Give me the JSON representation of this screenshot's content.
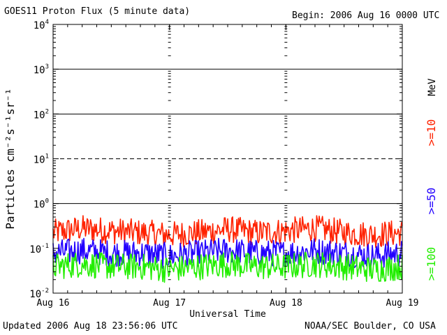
{
  "header": {
    "title": "GOES11 Proton Flux (5 minute data)",
    "begin": "Begin: 2006 Aug 16 0000 UTC"
  },
  "footer": {
    "updated": "Updated 2006 Aug 18 23:56:06 UTC",
    "source": "NOAA/SEC Boulder, CO USA"
  },
  "chart_data": {
    "type": "line",
    "title": "GOES11 Proton Flux (5 minute data)",
    "xlabel": "Universal Time",
    "ylabel": "Particles cm⁻²s⁻¹sr⁻¹",
    "y_scale": "log",
    "ylim": [
      0.01,
      10000
    ],
    "y_ticks": [
      {
        "base": "10",
        "exp": "-2"
      },
      {
        "base": "10",
        "exp": "-1"
      },
      {
        "base": "10",
        "exp": "0"
      },
      {
        "base": "10",
        "exp": "1"
      },
      {
        "base": "10",
        "exp": "2"
      },
      {
        "base": "10",
        "exp": "3"
      },
      {
        "base": "10",
        "exp": "4"
      }
    ],
    "x_ticks": [
      "Aug 16",
      "Aug 17",
      "Aug 18",
      "Aug 19"
    ],
    "xlim": [
      "2006-08-16",
      "2006-08-19"
    ],
    "right_axis_unit": "MeV",
    "series": [
      {
        "name": ">=10",
        "color": "#ff2200",
        "x": [
          "2006-08-16T00:00",
          "2006-08-16T06:00",
          "2006-08-16T12:00",
          "2006-08-16T18:00",
          "2006-08-17T00:00",
          "2006-08-17T06:00",
          "2006-08-17T12:00",
          "2006-08-17T18:00",
          "2006-08-18T00:00",
          "2006-08-18T06:00",
          "2006-08-18T12:00",
          "2006-08-18T18:00",
          "2006-08-19T00:00"
        ],
        "values": [
          0.2,
          0.25,
          0.22,
          0.2,
          0.18,
          0.2,
          0.24,
          0.2,
          0.22,
          0.25,
          0.2,
          0.18,
          0.2
        ]
      },
      {
        "name": ">=50",
        "color": "#2200ff",
        "x": [
          "2006-08-16T00:00",
          "2006-08-16T06:00",
          "2006-08-16T12:00",
          "2006-08-16T18:00",
          "2006-08-17T00:00",
          "2006-08-17T06:00",
          "2006-08-17T12:00",
          "2006-08-17T18:00",
          "2006-08-18T00:00",
          "2006-08-18T06:00",
          "2006-08-18T12:00",
          "2006-08-18T18:00",
          "2006-08-19T00:00"
        ],
        "values": [
          0.07,
          0.08,
          0.07,
          0.07,
          0.06,
          0.07,
          0.08,
          0.07,
          0.07,
          0.08,
          0.07,
          0.06,
          0.07
        ]
      },
      {
        "name": ">=100",
        "color": "#22ee00",
        "x": [
          "2006-08-16T00:00",
          "2006-08-16T06:00",
          "2006-08-16T12:00",
          "2006-08-16T18:00",
          "2006-08-17T00:00",
          "2006-08-17T06:00",
          "2006-08-17T12:00",
          "2006-08-17T18:00",
          "2006-08-18T00:00",
          "2006-08-18T06:00",
          "2006-08-18T12:00",
          "2006-08-18T18:00",
          "2006-08-19T00:00"
        ],
        "values": [
          0.035,
          0.04,
          0.035,
          0.035,
          0.03,
          0.035,
          0.04,
          0.035,
          0.035,
          0.04,
          0.035,
          0.03,
          0.035
        ]
      }
    ],
    "reference_lines": [
      {
        "value": 1000,
        "style": "solid"
      },
      {
        "value": 100,
        "style": "solid"
      },
      {
        "value": 10,
        "style": "dashed"
      },
      {
        "value": 1,
        "style": "solid"
      }
    ],
    "grid": false
  }
}
